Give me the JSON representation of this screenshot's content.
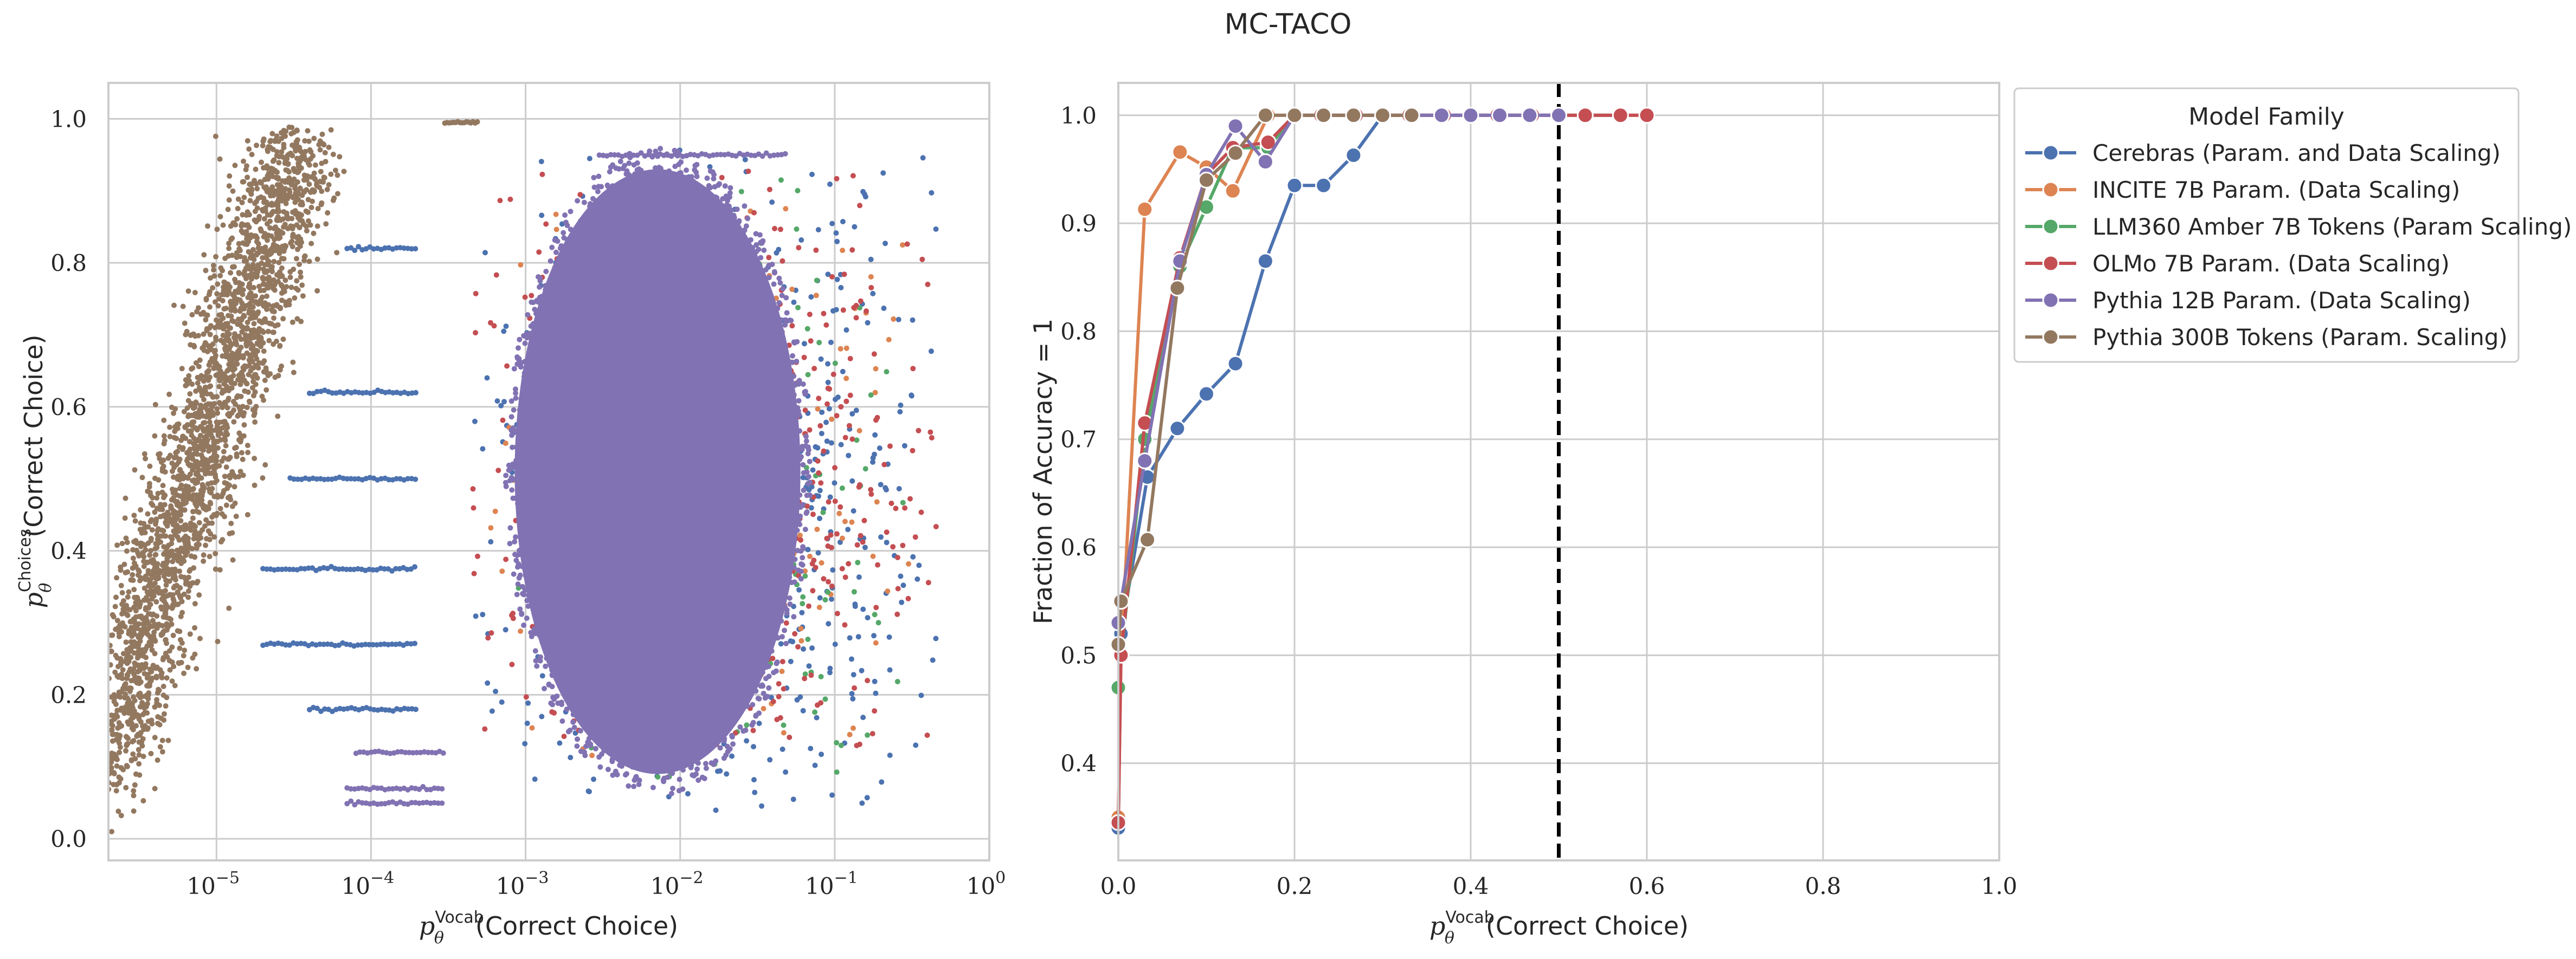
{
  "figure": {
    "title": "MC-TACO",
    "colors": {
      "Cerebras": "#4c72b0",
      "INCITE": "#dd8452",
      "LLM360": "#55a868",
      "OLMo": "#c44e52",
      "Pythia12B": "#8172b3",
      "Pythia300B": "#937860"
    }
  },
  "chart_data": [
    {
      "type": "scatter",
      "xlabel_main": "p",
      "xlabel_sup": "Vocab",
      "xlabel_sub": "θ",
      "xlabel_rest": "(Correct Choice)",
      "ylabel_main": "p",
      "ylabel_sup": "Choices",
      "ylabel_sub": "θ",
      "ylabel_rest": "(Correct Choice)",
      "x_scale": "log",
      "xlim": [
        2e-06,
        1.0
      ],
      "ylim": [
        -0.03,
        1.05
      ],
      "grid": true,
      "x_ticks": [
        {
          "base": "10",
          "exp": "−5",
          "value": 1e-05
        },
        {
          "base": "10",
          "exp": "−4",
          "value": 0.0001
        },
        {
          "base": "10",
          "exp": "−3",
          "value": 0.001
        },
        {
          "base": "10",
          "exp": "−2",
          "value": 0.01
        },
        {
          "base": "10",
          "exp": "−1",
          "value": 0.1
        },
        {
          "base": "10",
          "exp": "0",
          "value": 1
        }
      ],
      "y_ticks": [
        "0.0",
        "0.2",
        "0.4",
        "0.6",
        "0.8",
        "1.0"
      ],
      "y_tick_values": [
        0.0,
        0.2,
        0.4,
        0.6,
        0.8,
        1.0
      ],
      "clusters": [
        {
          "family": "Pythia300B",
          "x_range": [
            2e-06,
            3.5e-05
          ],
          "y_range": [
            0.08,
            0.98
          ],
          "shape": "diagonal-band"
        },
        {
          "family": "Pythia300B",
          "x_range": [
            0.0003,
            0.0005
          ],
          "y_range": [
            0.99,
            1.0
          ],
          "shape": "horizontal-line"
        },
        {
          "family": "Cerebras",
          "x_range": [
            0.0001,
            0.5
          ],
          "y_range": [
            0.02,
            0.96
          ],
          "shape": "main-cloud"
        },
        {
          "family": "OLMo",
          "x_range": [
            0.0002,
            0.55
          ],
          "y_range": [
            0.05,
            0.95
          ],
          "shape": "main-cloud"
        },
        {
          "family": "Pythia12B",
          "x_range": [
            0.0003,
            0.2
          ],
          "y_range": [
            0.03,
            0.96
          ],
          "shape": "main-cloud"
        }
      ],
      "horizontal_streaks": [
        {
          "family": "Cerebras",
          "y": 0.82,
          "x_range": [
            7e-05,
            0.0002
          ]
        },
        {
          "family": "Cerebras",
          "y": 0.62,
          "x_range": [
            4e-05,
            0.0002
          ]
        },
        {
          "family": "Cerebras",
          "y": 0.5,
          "x_range": [
            3e-05,
            0.0002
          ]
        },
        {
          "family": "Cerebras",
          "y": 0.375,
          "x_range": [
            2e-05,
            0.0002
          ]
        },
        {
          "family": "Cerebras",
          "y": 0.27,
          "x_range": [
            2e-05,
            0.0002
          ]
        },
        {
          "family": "Cerebras",
          "y": 0.18,
          "x_range": [
            4e-05,
            0.0002
          ]
        },
        {
          "family": "Pythia12B",
          "y": 0.95,
          "x_range": [
            0.003,
            0.05
          ]
        },
        {
          "family": "Pythia12B",
          "y": 0.12,
          "x_range": [
            8e-05,
            0.0003
          ]
        },
        {
          "family": "Pythia12B",
          "y": 0.07,
          "x_range": [
            7e-05,
            0.0003
          ]
        },
        {
          "family": "Pythia12B",
          "y": 0.05,
          "x_range": [
            7e-05,
            0.0003
          ]
        }
      ]
    },
    {
      "type": "line",
      "xlabel_main": "p",
      "xlabel_sup": "Vocab",
      "xlabel_sub": "θ",
      "xlabel_rest": "(Correct Choice)",
      "ylabel": "Fraction of Accuracy = 1",
      "xlim": [
        0.0,
        1.0
      ],
      "ylim": [
        0.31,
        1.03
      ],
      "grid": true,
      "x_ticks": [
        "0.0",
        "0.2",
        "0.4",
        "0.6",
        "0.8",
        "1.0"
      ],
      "x_tick_values": [
        0.0,
        0.2,
        0.4,
        0.6,
        0.8,
        1.0
      ],
      "y_ticks": [
        "0.4",
        "0.5",
        "0.6",
        "0.7",
        "0.8",
        "0.9",
        "1.0"
      ],
      "y_tick_values": [
        0.4,
        0.5,
        0.6,
        0.7,
        0.8,
        0.9,
        1.0
      ],
      "vline_x": 0.5,
      "legend_title": "Model Family",
      "legend_placement": "outside-upper-right",
      "series": [
        {
          "name": "Cerebras (Param. and Data Scaling)",
          "key": "Cerebras",
          "x": [
            0.0,
            0.003,
            0.033,
            0.067,
            0.1,
            0.133,
            0.167,
            0.2,
            0.233,
            0.267,
            0.3,
            0.333,
            0.367,
            0.4,
            0.433,
            0.467,
            0.5
          ],
          "y": [
            0.34,
            0.52,
            0.665,
            0.71,
            0.742,
            0.77,
            0.865,
            0.935,
            0.935,
            0.963,
            1.0,
            1.0,
            1.0,
            1.0,
            1.0,
            1.0,
            1.0
          ]
        },
        {
          "name": "INCITE 7B Param. (Data Scaling)",
          "key": "INCITE",
          "x": [
            0.0,
            0.003,
            0.03,
            0.07,
            0.1,
            0.13,
            0.17,
            0.2,
            0.23,
            0.27,
            0.3,
            0.33,
            0.37,
            0.4,
            0.43,
            0.47,
            0.5,
            0.53,
            0.57,
            0.6
          ],
          "y": [
            0.35,
            0.5,
            0.913,
            0.966,
            0.952,
            0.93,
            1.0,
            1.0,
            1.0,
            1.0,
            1.0,
            1.0,
            1.0,
            1.0,
            1.0,
            1.0,
            1.0,
            1.0,
            1.0,
            1.0
          ]
        },
        {
          "name": "LLM360 Amber 7B Tokens (Param Scaling)",
          "key": "LLM360",
          "x": [
            0.0,
            0.003,
            0.03,
            0.07,
            0.1,
            0.13,
            0.17,
            0.2,
            0.23,
            0.27,
            0.3,
            0.33,
            0.37,
            0.4,
            0.43,
            0.47,
            0.5,
            0.53,
            0.57
          ],
          "y": [
            0.47,
            0.5,
            0.7,
            0.86,
            0.915,
            0.97,
            0.97,
            1.0,
            1.0,
            1.0,
            1.0,
            1.0,
            1.0,
            1.0,
            1.0,
            1.0,
            1.0,
            1.0,
            1.0
          ]
        },
        {
          "name": "OLMo 7B Param. (Data Scaling)",
          "key": "OLMo",
          "x": [
            0.0,
            0.003,
            0.03,
            0.07,
            0.1,
            0.13,
            0.17,
            0.2,
            0.23,
            0.27,
            0.3,
            0.33,
            0.37,
            0.4,
            0.43,
            0.47,
            0.5,
            0.53,
            0.57,
            0.6
          ],
          "y": [
            0.345,
            0.5,
            0.715,
            0.868,
            0.945,
            0.97,
            0.975,
            1.0,
            1.0,
            1.0,
            1.0,
            1.0,
            1.0,
            1.0,
            1.0,
            1.0,
            1.0,
            1.0,
            1.0,
            1.0
          ]
        },
        {
          "name": "Pythia 12B Param. (Data Scaling)",
          "key": "Pythia12B",
          "x": [
            0.0,
            0.003,
            0.03,
            0.07,
            0.1,
            0.133,
            0.167,
            0.2,
            0.233,
            0.267,
            0.3,
            0.333,
            0.367,
            0.4,
            0.433,
            0.467,
            0.5
          ],
          "y": [
            0.53,
            0.55,
            0.68,
            0.865,
            0.945,
            0.99,
            0.957,
            1.0,
            1.0,
            1.0,
            1.0,
            1.0,
            1.0,
            1.0,
            1.0,
            1.0,
            1.0
          ]
        },
        {
          "name": "Pythia 300B Tokens (Param. Scaling)",
          "key": "Pythia300B",
          "x": [
            0.0,
            0.003,
            0.033,
            0.067,
            0.1,
            0.133,
            0.167,
            0.2,
            0.233,
            0.267,
            0.3,
            0.333
          ],
          "y": [
            0.51,
            0.55,
            0.607,
            0.84,
            0.94,
            0.965,
            1.0,
            1.0,
            1.0,
            1.0,
            1.0,
            1.0
          ]
        }
      ]
    }
  ]
}
